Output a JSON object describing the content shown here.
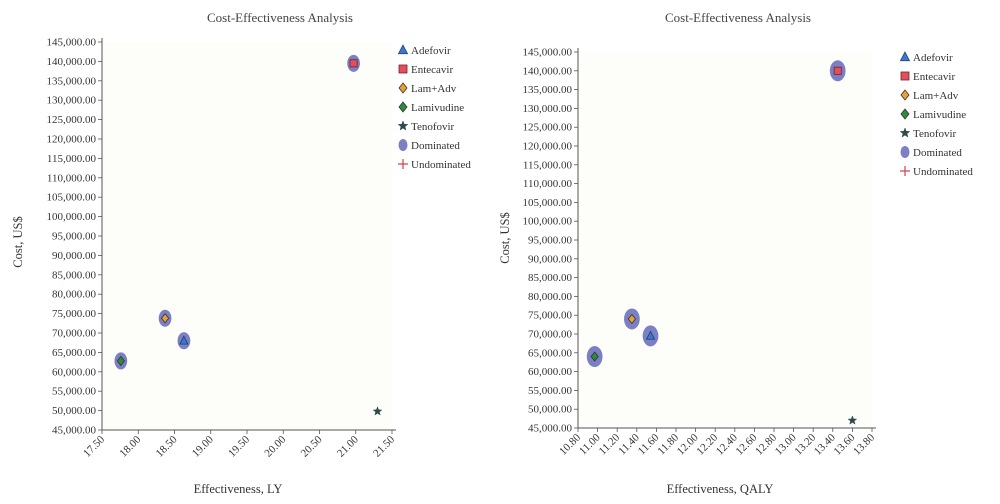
{
  "chart_data": [
    {
      "type": "scatter",
      "title": "Cost-Effectiveness Analysis",
      "xlabel": "Effectiveness, LY",
      "ylabel": "Cost, US$",
      "xlim": [
        17.5,
        21.5
      ],
      "ylim": [
        45000,
        145000
      ],
      "xticks": [
        "17.50",
        "18.00",
        "18.50",
        "19.00",
        "19.50",
        "20.00",
        "20.50",
        "21.00",
        "21.50"
      ],
      "yticks": [
        "45,000.00",
        "50,000.00",
        "55,000.00",
        "60,000.00",
        "65,000.00",
        "70,000.00",
        "75,000.00",
        "80,000.00",
        "85,000.00",
        "90,000.00",
        "95,000.00",
        "100,000.00",
        "105,000.00",
        "110,000.00",
        "115,000.00",
        "120,000.00",
        "125,000.00",
        "130,000.00",
        "135,000.00",
        "140,000.00",
        "145,000.00"
      ],
      "grid": false,
      "legend_position": "top-right",
      "series": [
        {
          "name": "Adefovir",
          "marker": "triangle",
          "color": "#3b78c9",
          "x": 18.63,
          "y": 68000,
          "dominated": true
        },
        {
          "name": "Entecavir",
          "marker": "square",
          "color": "#e0505c",
          "x": 20.97,
          "y": 139500,
          "dominated": true
        },
        {
          "name": "Lam+Adv",
          "marker": "diamond",
          "color": "#e8a030",
          "x": 18.37,
          "y": 73800,
          "dominated": true
        },
        {
          "name": "Lamivudine",
          "marker": "diamond",
          "color": "#2d8a3e",
          "x": 17.76,
          "y": 62800,
          "dominated": true
        },
        {
          "name": "Tenofovir",
          "marker": "star",
          "color": "#2e4a4a",
          "x": 21.3,
          "y": 49800,
          "dominated": false
        }
      ],
      "legend": [
        {
          "label": "Adefovir",
          "marker": "triangle",
          "color": "#3b78c9"
        },
        {
          "label": "Entecavir",
          "marker": "square",
          "color": "#e0505c"
        },
        {
          "label": "Lam+Adv",
          "marker": "diamond",
          "color": "#e8a030"
        },
        {
          "label": "Lamivudine",
          "marker": "diamond",
          "color": "#2d8a3e"
        },
        {
          "label": "Tenofovir",
          "marker": "star",
          "color": "#2e4a4a"
        },
        {
          "label": "Dominated",
          "marker": "ellipse",
          "color": "#7b7fc4"
        },
        {
          "label": "Undominated",
          "marker": "plus",
          "color": "#d04050"
        }
      ]
    },
    {
      "type": "scatter",
      "title": "Cost-Effectiveness Analysis",
      "xlabel": "Effectiveness, QALY",
      "ylabel": "Cost, US$",
      "xlim": [
        10.8,
        13.8
      ],
      "ylim": [
        45000,
        145000
      ],
      "xticks": [
        "10.80",
        "11.00",
        "11.20",
        "11.40",
        "11.60",
        "11.80",
        "12.00",
        "12.20",
        "12.40",
        "12.60",
        "12.80",
        "13.00",
        "13.20",
        "13.40",
        "13.60",
        "13.80"
      ],
      "yticks": [
        "45,000.00",
        "50,000.00",
        "55,000.00",
        "60,000.00",
        "65,000.00",
        "70,000.00",
        "75,000.00",
        "80,000.00",
        "85,000.00",
        "90,000.00",
        "95,000.00",
        "100,000.00",
        "105,000.00",
        "110,000.00",
        "115,000.00",
        "120,000.00",
        "125,000.00",
        "130,000.00",
        "135,000.00",
        "140,000.00",
        "145,000.00"
      ],
      "grid": false,
      "legend_position": "top-right",
      "series": [
        {
          "name": "Adefovir",
          "marker": "triangle",
          "color": "#3b78c9",
          "x": 11.54,
          "y": 69500,
          "dominated": true
        },
        {
          "name": "Entecavir",
          "marker": "square",
          "color": "#e0505c",
          "x": 13.45,
          "y": 140000,
          "dominated": true
        },
        {
          "name": "Lam+Adv",
          "marker": "diamond",
          "color": "#e8a030",
          "x": 11.35,
          "y": 74000,
          "dominated": true
        },
        {
          "name": "Lamivudine",
          "marker": "diamond",
          "color": "#2d8a3e",
          "x": 10.97,
          "y": 64000,
          "dominated": true
        },
        {
          "name": "Tenofovir",
          "marker": "star",
          "color": "#2e4a4a",
          "x": 13.6,
          "y": 47000,
          "dominated": false
        }
      ],
      "legend": [
        {
          "label": "Adefovir",
          "marker": "triangle",
          "color": "#3b78c9"
        },
        {
          "label": "Entecavir",
          "marker": "square",
          "color": "#e0505c"
        },
        {
          "label": "Lam+Adv",
          "marker": "diamond",
          "color": "#e8a030"
        },
        {
          "label": "Lamivudine",
          "marker": "diamond",
          "color": "#2d8a3e"
        },
        {
          "label": "Tenofovir",
          "marker": "star",
          "color": "#2e4a4a"
        },
        {
          "label": "Dominated",
          "marker": "ellipse",
          "color": "#7b7fc4"
        },
        {
          "label": "Undominated",
          "marker": "plus",
          "color": "#d04050"
        }
      ]
    }
  ]
}
